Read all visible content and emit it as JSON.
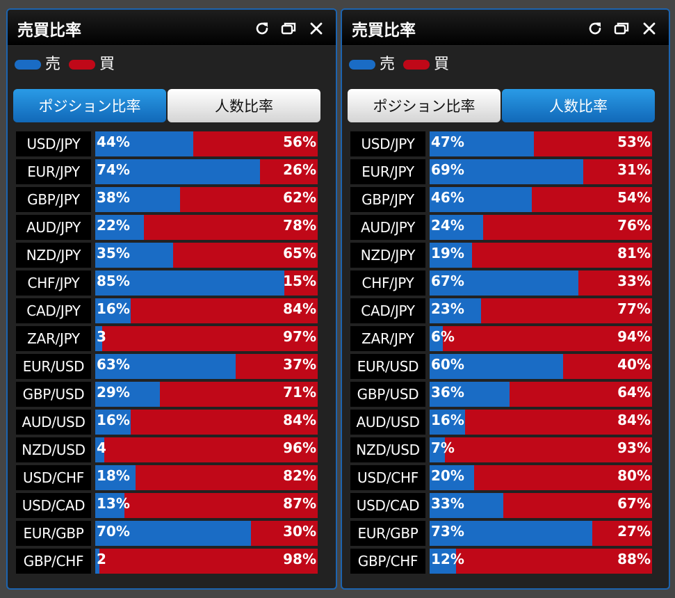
{
  "colors": {
    "sell": "#1a6cc5",
    "buy": "#c00818",
    "accent": "#1c64b0"
  },
  "panels": [
    {
      "title": "売買比率",
      "icons": {
        "refresh": "refresh-icon",
        "restore": "restore-window-icon",
        "close": "close-icon"
      },
      "legend": {
        "sell_label": "売",
        "buy_label": "買"
      },
      "tabs": [
        {
          "label": "ポジション比率",
          "active": true
        },
        {
          "label": "人数比率",
          "active": false
        }
      ],
      "rows": [
        {
          "pair": "USD/JPY",
          "sell": 44,
          "sell_text": "44%",
          "buy_text": "56%"
        },
        {
          "pair": "EUR/JPY",
          "sell": 74,
          "sell_text": "74%",
          "buy_text": "26%"
        },
        {
          "pair": "GBP/JPY",
          "sell": 38,
          "sell_text": "38%",
          "buy_text": "62%"
        },
        {
          "pair": "AUD/JPY",
          "sell": 22,
          "sell_text": "22%",
          "buy_text": "78%"
        },
        {
          "pair": "NZD/JPY",
          "sell": 35,
          "sell_text": "35%",
          "buy_text": "65%"
        },
        {
          "pair": "CHF/JPY",
          "sell": 85,
          "sell_text": "85%",
          "buy_text": "15%"
        },
        {
          "pair": "CAD/JPY",
          "sell": 16,
          "sell_text": "16%",
          "buy_text": "84%"
        },
        {
          "pair": "ZAR/JPY",
          "sell": 3,
          "sell_text": "3",
          "buy_text": "97%"
        },
        {
          "pair": "EUR/USD",
          "sell": 63,
          "sell_text": "63%",
          "buy_text": "37%"
        },
        {
          "pair": "GBP/USD",
          "sell": 29,
          "sell_text": "29%",
          "buy_text": "71%"
        },
        {
          "pair": "AUD/USD",
          "sell": 16,
          "sell_text": "16%",
          "buy_text": "84%"
        },
        {
          "pair": "NZD/USD",
          "sell": 4,
          "sell_text": "4",
          "buy_text": "96%"
        },
        {
          "pair": "USD/CHF",
          "sell": 18,
          "sell_text": "18%",
          "buy_text": "82%"
        },
        {
          "pair": "USD/CAD",
          "sell": 13,
          "sell_text": "13%",
          "buy_text": "87%"
        },
        {
          "pair": "EUR/GBP",
          "sell": 70,
          "sell_text": "70%",
          "buy_text": "30%"
        },
        {
          "pair": "GBP/CHF",
          "sell": 2,
          "sell_text": "2",
          "buy_text": "98%"
        }
      ]
    },
    {
      "title": "売買比率",
      "icons": {
        "refresh": "refresh-icon",
        "restore": "restore-window-icon",
        "close": "close-icon"
      },
      "legend": {
        "sell_label": "売",
        "buy_label": "買"
      },
      "tabs": [
        {
          "label": "ポジション比率",
          "active": false
        },
        {
          "label": "人数比率",
          "active": true
        }
      ],
      "rows": [
        {
          "pair": "USD/JPY",
          "sell": 47,
          "sell_text": "47%",
          "buy_text": "53%"
        },
        {
          "pair": "EUR/JPY",
          "sell": 69,
          "sell_text": "69%",
          "buy_text": "31%"
        },
        {
          "pair": "GBP/JPY",
          "sell": 46,
          "sell_text": "46%",
          "buy_text": "54%"
        },
        {
          "pair": "AUD/JPY",
          "sell": 24,
          "sell_text": "24%",
          "buy_text": "76%"
        },
        {
          "pair": "NZD/JPY",
          "sell": 19,
          "sell_text": "19%",
          "buy_text": "81%"
        },
        {
          "pair": "CHF/JPY",
          "sell": 67,
          "sell_text": "67%",
          "buy_text": "33%"
        },
        {
          "pair": "CAD/JPY",
          "sell": 23,
          "sell_text": "23%",
          "buy_text": "77%"
        },
        {
          "pair": "ZAR/JPY",
          "sell": 6,
          "sell_text": "6%",
          "buy_text": "94%"
        },
        {
          "pair": "EUR/USD",
          "sell": 60,
          "sell_text": "60%",
          "buy_text": "40%"
        },
        {
          "pair": "GBP/USD",
          "sell": 36,
          "sell_text": "36%",
          "buy_text": "64%"
        },
        {
          "pair": "AUD/USD",
          "sell": 16,
          "sell_text": "16%",
          "buy_text": "84%"
        },
        {
          "pair": "NZD/USD",
          "sell": 7,
          "sell_text": "7%",
          "buy_text": "93%"
        },
        {
          "pair": "USD/CHF",
          "sell": 20,
          "sell_text": "20%",
          "buy_text": "80%"
        },
        {
          "pair": "USD/CAD",
          "sell": 33,
          "sell_text": "33%",
          "buy_text": "67%"
        },
        {
          "pair": "EUR/GBP",
          "sell": 73,
          "sell_text": "73%",
          "buy_text": "27%"
        },
        {
          "pair": "GBP/CHF",
          "sell": 12,
          "sell_text": "12%",
          "buy_text": "88%"
        }
      ]
    }
  ]
}
